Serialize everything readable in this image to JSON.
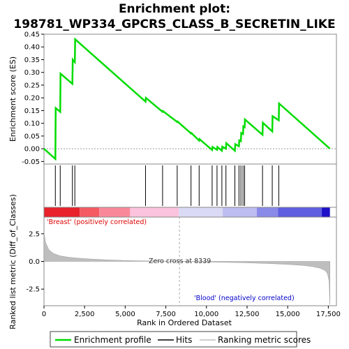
{
  "chart_data": {
    "type": "line",
    "title_line1": "Enrichment plot:",
    "title_line2": "198781_WP334_GPCRS_CLASS_B_SECRETIN_LIKE",
    "xlabel": "Rank in Ordered Dataset",
    "es_ylabel": "Enrichment score (ES)",
    "metric_ylabel": "Ranked list metric (Diff_of_Classes)",
    "xlim": [
      0,
      18000
    ],
    "x_ticks": [
      0,
      2500,
      5000,
      7500,
      10000,
      12500,
      15000,
      17500
    ],
    "x_tick_labels": [
      "0",
      "2,500",
      "5,000",
      "7,500",
      "10,000",
      "12,500",
      "15,000",
      "17,500"
    ],
    "es_ylim": [
      -0.06,
      0.45
    ],
    "es_ticks": [
      -0.05,
      0.0,
      0.05,
      0.1,
      0.15,
      0.2,
      0.25,
      0.3,
      0.35,
      0.4,
      0.45
    ],
    "es_tick_labels": [
      "-0.05",
      "0.00",
      "0.05",
      "0.10",
      "0.15",
      "0.20",
      "0.25",
      "0.30",
      "0.35",
      "0.40",
      "0.45"
    ],
    "metric_ylim": [
      -4.0,
      4.0
    ],
    "metric_ticks": [
      -2.5,
      0.0,
      2.5
    ],
    "metric_tick_labels": [
      "-2.5",
      "0.0",
      "2.5"
    ],
    "enrichment_profile": {
      "x": [
        0,
        700,
        720,
        1000,
        1020,
        1750,
        1770,
        1900,
        1920,
        6250,
        6270,
        7300,
        7320,
        8200,
        8220,
        9050,
        9070,
        9550,
        9570,
        10350,
        10370,
        10650,
        10670,
        10950,
        10970,
        11200,
        11220,
        11750,
        11770,
        12000,
        12020,
        12120,
        12140,
        12250,
        12270,
        12350,
        12370,
        13450,
        13470,
        14050,
        14070,
        14450,
        14470,
        17600
      ],
      "y": [
        0.0,
        -0.04,
        0.16,
        0.145,
        0.295,
        0.255,
        0.35,
        0.34,
        0.43,
        0.185,
        0.2,
        0.145,
        0.148,
        0.105,
        0.107,
        0.06,
        0.062,
        0.032,
        0.038,
        -0.005,
        0.007,
        -0.004,
        0.007,
        -0.008,
        0.008,
        0.0,
        0.022,
        -0.008,
        0.018,
        0.01,
        0.033,
        0.03,
        0.062,
        0.058,
        0.088,
        0.085,
        0.115,
        0.055,
        0.102,
        0.068,
        0.128,
        0.112,
        0.178,
        0.0
      ]
    },
    "hits": [
      700,
      1000,
      1750,
      1900,
      6250,
      7300,
      8200,
      9050,
      9550,
      10350,
      10650,
      10950,
      11200,
      11750,
      12000,
      12120,
      12250,
      12350,
      13450,
      14050,
      14450
    ],
    "heatmap_segments": [
      {
        "from": 0,
        "to": 2200,
        "color": "#e8212b"
      },
      {
        "from": 2200,
        "to": 3400,
        "color": "#f45a62"
      },
      {
        "from": 3400,
        "to": 5300,
        "color": "#f9899a"
      },
      {
        "from": 5300,
        "to": 8300,
        "color": "#fbc3dd"
      },
      {
        "from": 8300,
        "to": 11000,
        "color": "#dadaf5"
      },
      {
        "from": 11000,
        "to": 13100,
        "color": "#bdbdf0"
      },
      {
        "from": 13100,
        "to": 14400,
        "color": "#8a8ae8"
      },
      {
        "from": 14400,
        "to": 17100,
        "color": "#5e5edf"
      },
      {
        "from": 17100,
        "to": 17600,
        "color": "#1d10c8"
      }
    ],
    "metric_profile": {
      "x": [
        0,
        100,
        300,
        600,
        1000,
        1500,
        2000,
        3000,
        4000,
        5000,
        6000,
        7000,
        8000,
        8339,
        9000,
        10000,
        11000,
        12000,
        13000,
        14000,
        15000,
        16000,
        16500,
        17000,
        17300,
        17450,
        17550,
        17600
      ],
      "y": [
        2.6,
        1.7,
        1.05,
        0.7,
        0.5,
        0.38,
        0.3,
        0.2,
        0.13,
        0.08,
        0.05,
        0.03,
        0.01,
        0.0,
        -0.02,
        -0.05,
        -0.08,
        -0.11,
        -0.15,
        -0.2,
        -0.27,
        -0.37,
        -0.46,
        -0.62,
        -0.82,
        -1.1,
        -1.8,
        -3.9
      ]
    },
    "zero_cross_x": 8339,
    "annotations": {
      "positive": "'Breast' (positively correlated)",
      "negative": "'Blood' (negatively correlated)",
      "zero_cross": "Zero cross at 8339"
    },
    "legend": {
      "placement": "bottom",
      "items": [
        "Enrichment profile",
        "Hits",
        "Ranking metric scores"
      ]
    },
    "colors": {
      "profile": "#00dc00",
      "hits": "#000000",
      "metric": "#bebebe",
      "positive_text": "#dc0000",
      "negative_text": "#0000c8"
    }
  }
}
